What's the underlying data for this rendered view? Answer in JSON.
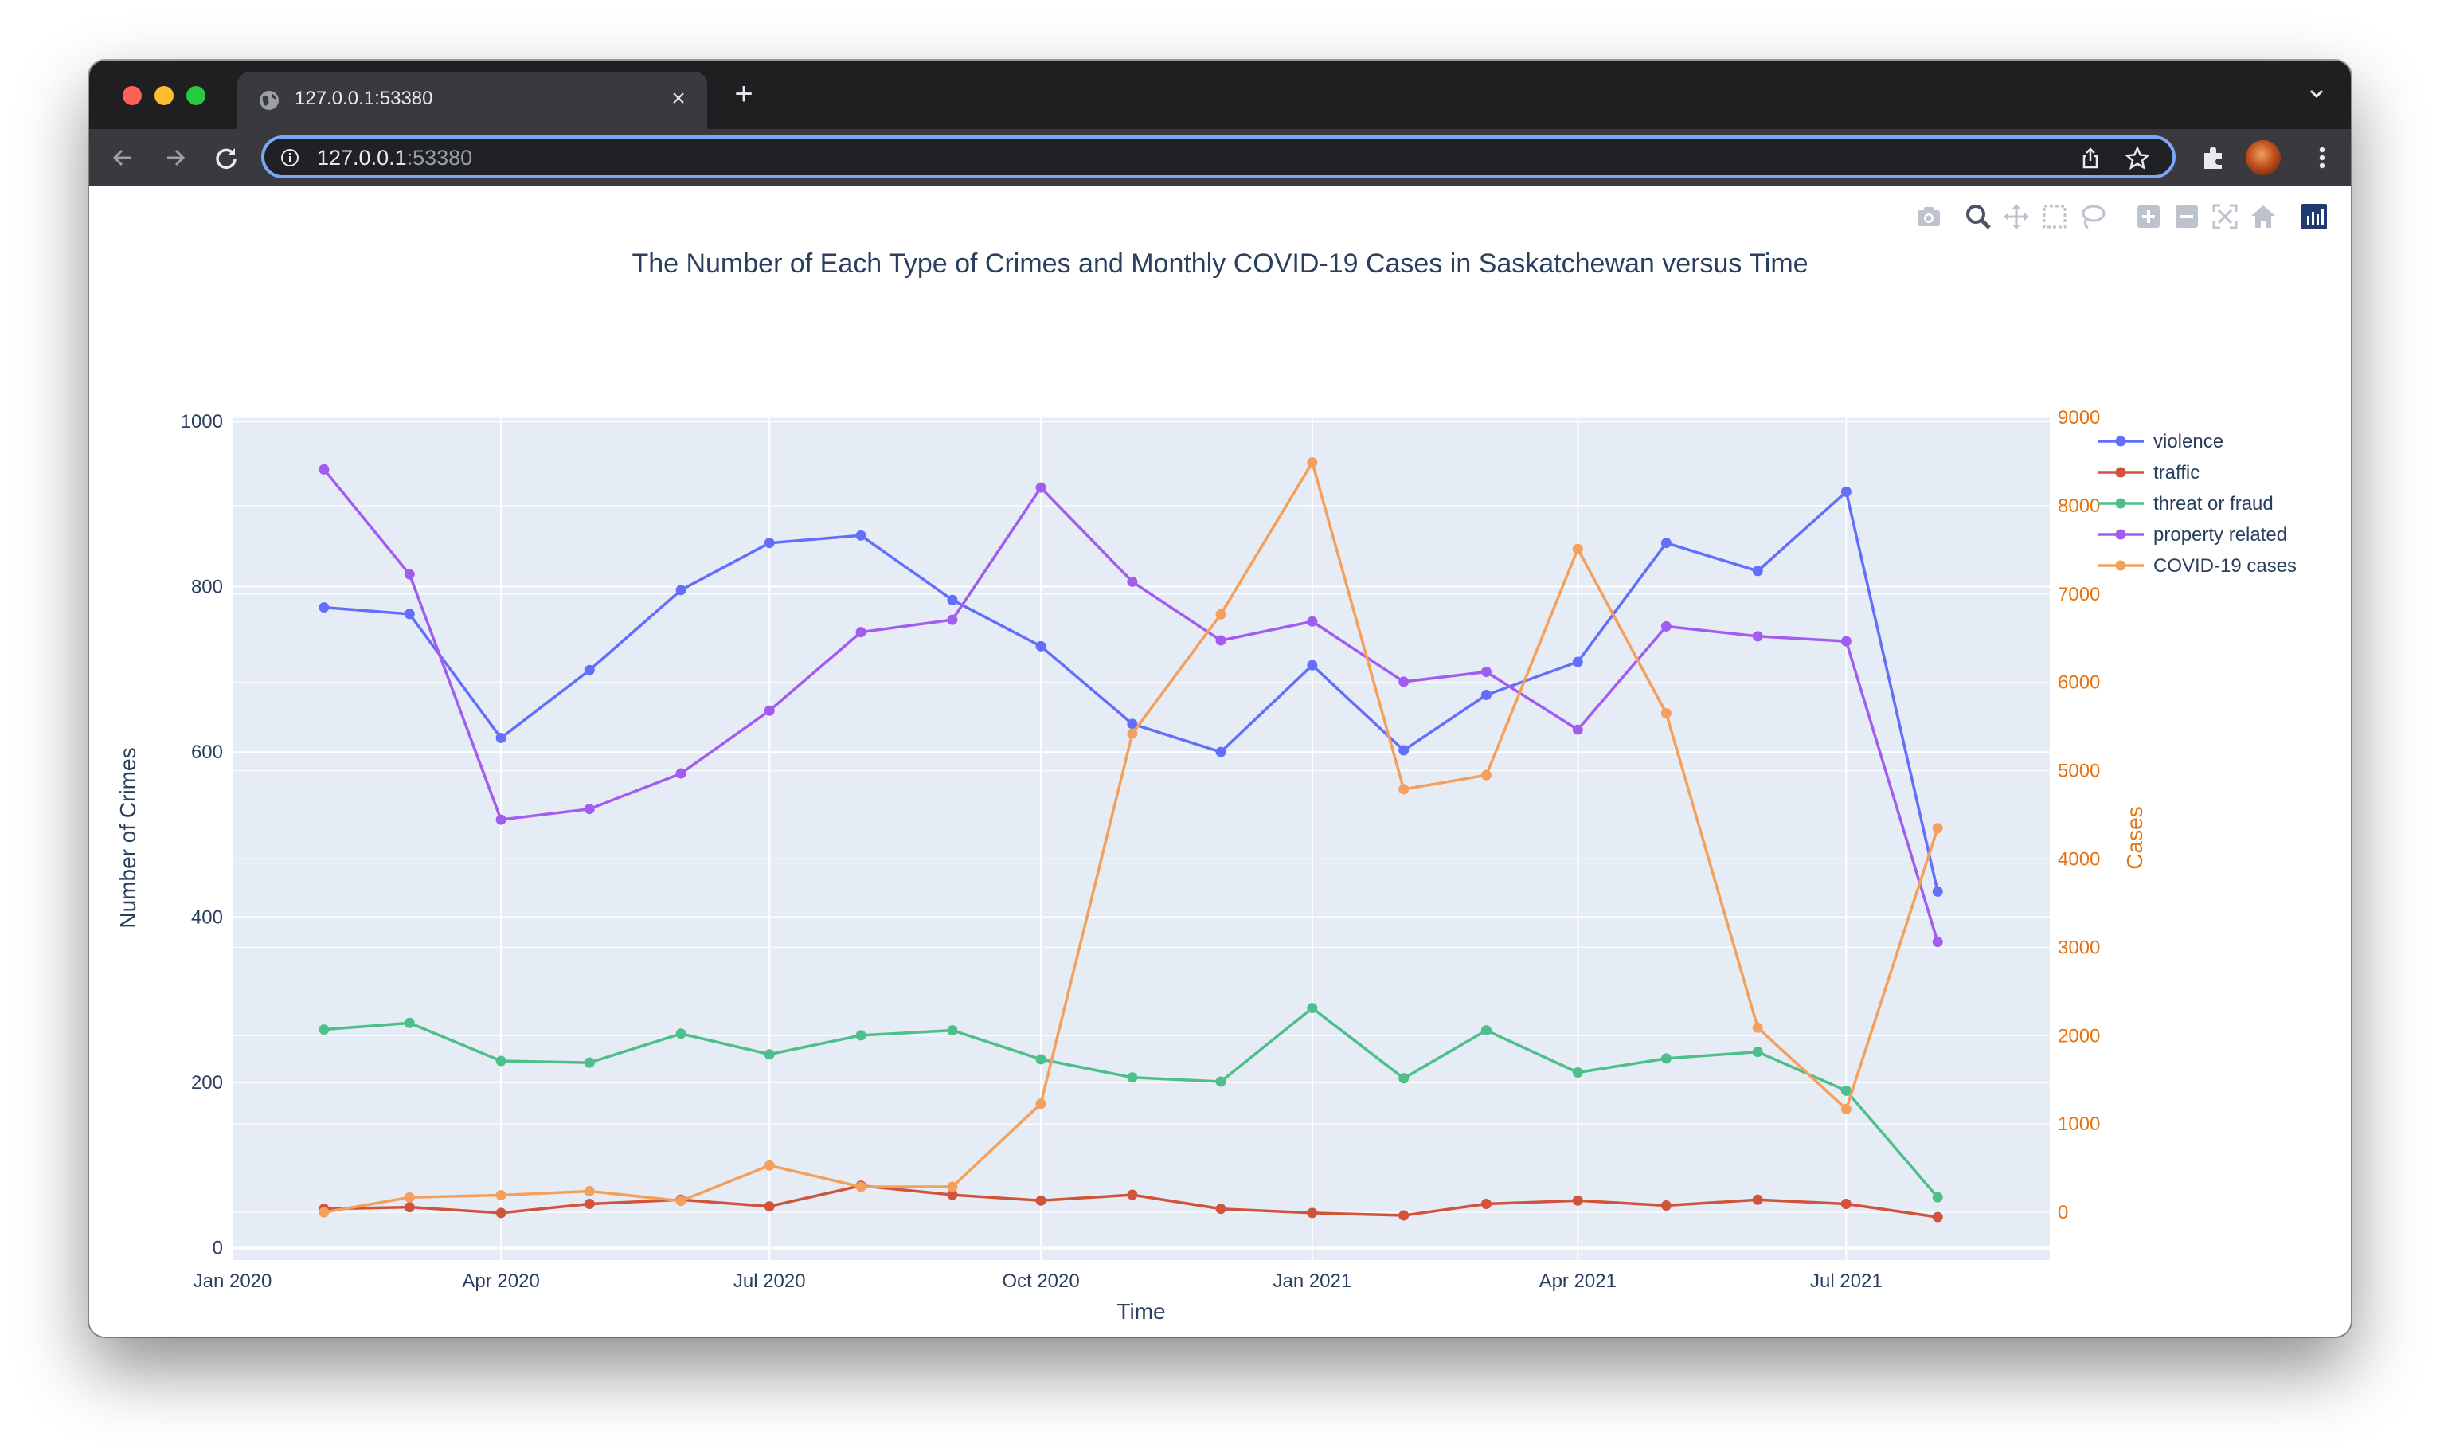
{
  "browser": {
    "tab_title": "127.0.0.1:53380",
    "url_host": "127.0.0.1",
    "url_port": ":53380",
    "tab_close_glyph": "×",
    "new_tab_glyph": "+"
  },
  "icons": {
    "favicon": "globe-icon",
    "close": "close-icon",
    "new_tab": "plus-icon",
    "back": "arrow-left-icon",
    "forward": "arrow-right-icon",
    "reload": "reload-icon",
    "info": "info-icon",
    "share": "share-icon",
    "bookmark": "star-icon",
    "extensions": "puzzle-icon",
    "menu": "kebab-menu-icon",
    "modebar": [
      "camera-icon",
      "zoom-icon",
      "pan-icon",
      "box-select-icon",
      "lasso-icon",
      "zoom-in-icon",
      "zoom-out-icon",
      "autoscale-icon",
      "reset-axes-icon",
      "plotly-logo-icon"
    ]
  },
  "colors": {
    "violence": "#636efa",
    "traffic": "#d0543a",
    "threat_or_fraud": "#4dbf8b",
    "property_related": "#a35cf0",
    "covid": "#f5a05a",
    "plot_bg": "#e5ecf6",
    "axis_text": "#2a3f5f",
    "right_axis_text": "#e8720c"
  },
  "chart_data": {
    "type": "line",
    "title": "The Number of Each Type of Crimes and Monthly COVID-19 Cases in Saskatchewan versus Time",
    "xlabel": "Time",
    "ylabel": "Number of Crimes",
    "y2label": "Cases",
    "x": [
      "2020-02-01",
      "2020-03-01",
      "2020-04-01",
      "2020-05-01",
      "2020-06-01",
      "2020-07-01",
      "2020-08-01",
      "2020-09-01",
      "2020-10-01",
      "2020-11-01",
      "2020-12-01",
      "2021-01-01",
      "2021-02-01",
      "2021-03-01",
      "2021-04-01",
      "2021-05-01",
      "2021-06-01",
      "2021-07-01",
      "2021-08-01"
    ],
    "xlim": [
      "2020-01-01",
      "2021-09-08"
    ],
    "x_ticks": [
      {
        "date": "2020-01-01",
        "label": "Jan 2020"
      },
      {
        "date": "2020-04-01",
        "label": "Apr 2020"
      },
      {
        "date": "2020-07-01",
        "label": "Jul 2020"
      },
      {
        "date": "2020-10-01",
        "label": "Oct 2020"
      },
      {
        "date": "2021-01-01",
        "label": "Jan 2021"
      },
      {
        "date": "2021-04-01",
        "label": "Apr 2021"
      },
      {
        "date": "2021-07-01",
        "label": "Jul 2021"
      }
    ],
    "ylim": [
      -15,
      1005
    ],
    "y_ticks": [
      0,
      200,
      400,
      600,
      800,
      1000
    ],
    "y2lim": [
      -540,
      9000
    ],
    "y2_ticks": [
      0,
      1000,
      2000,
      3000,
      4000,
      5000,
      6000,
      7000,
      8000,
      9000
    ],
    "y2_tick_labels": [
      "0",
      "1000",
      "2000",
      "3000",
      "4000",
      "5000",
      "6000",
      "7000",
      "8000",
      "9000"
    ],
    "series": [
      {
        "name": "violence",
        "axis": "y",
        "color": "#636efa",
        "values": [
          775,
          767,
          617,
          699,
          796,
          853,
          862,
          784,
          728,
          634,
          600,
          705,
          602,
          669,
          709,
          853,
          819,
          915,
          431
        ]
      },
      {
        "name": "traffic",
        "axis": "y",
        "color": "#d0543a",
        "values": [
          47,
          49,
          42,
          53,
          58,
          50,
          75,
          64,
          57,
          64,
          47,
          42,
          39,
          53,
          57,
          51,
          58,
          53,
          37
        ]
      },
      {
        "name": "threat or fraud",
        "axis": "y",
        "color": "#4dbf8b",
        "values": [
          264,
          272,
          226,
          224,
          259,
          234,
          257,
          263,
          228,
          206,
          201,
          290,
          205,
          263,
          212,
          229,
          237,
          190,
          61
        ]
      },
      {
        "name": "property related",
        "axis": "y",
        "color": "#a35cf0",
        "values": [
          942,
          815,
          518,
          531,
          574,
          650,
          745,
          760,
          920,
          806,
          735,
          758,
          685,
          697,
          627,
          752,
          740,
          734,
          370
        ]
      },
      {
        "name": "COVID-19 cases",
        "axis": "y2",
        "color": "#f5a05a",
        "values": [
          0,
          170,
          195,
          240,
          130,
          530,
          290,
          290,
          1230,
          5420,
          6770,
          8490,
          4790,
          4950,
          7510,
          5650,
          2090,
          1170,
          4350
        ]
      }
    ],
    "legend_position": "top-right"
  }
}
